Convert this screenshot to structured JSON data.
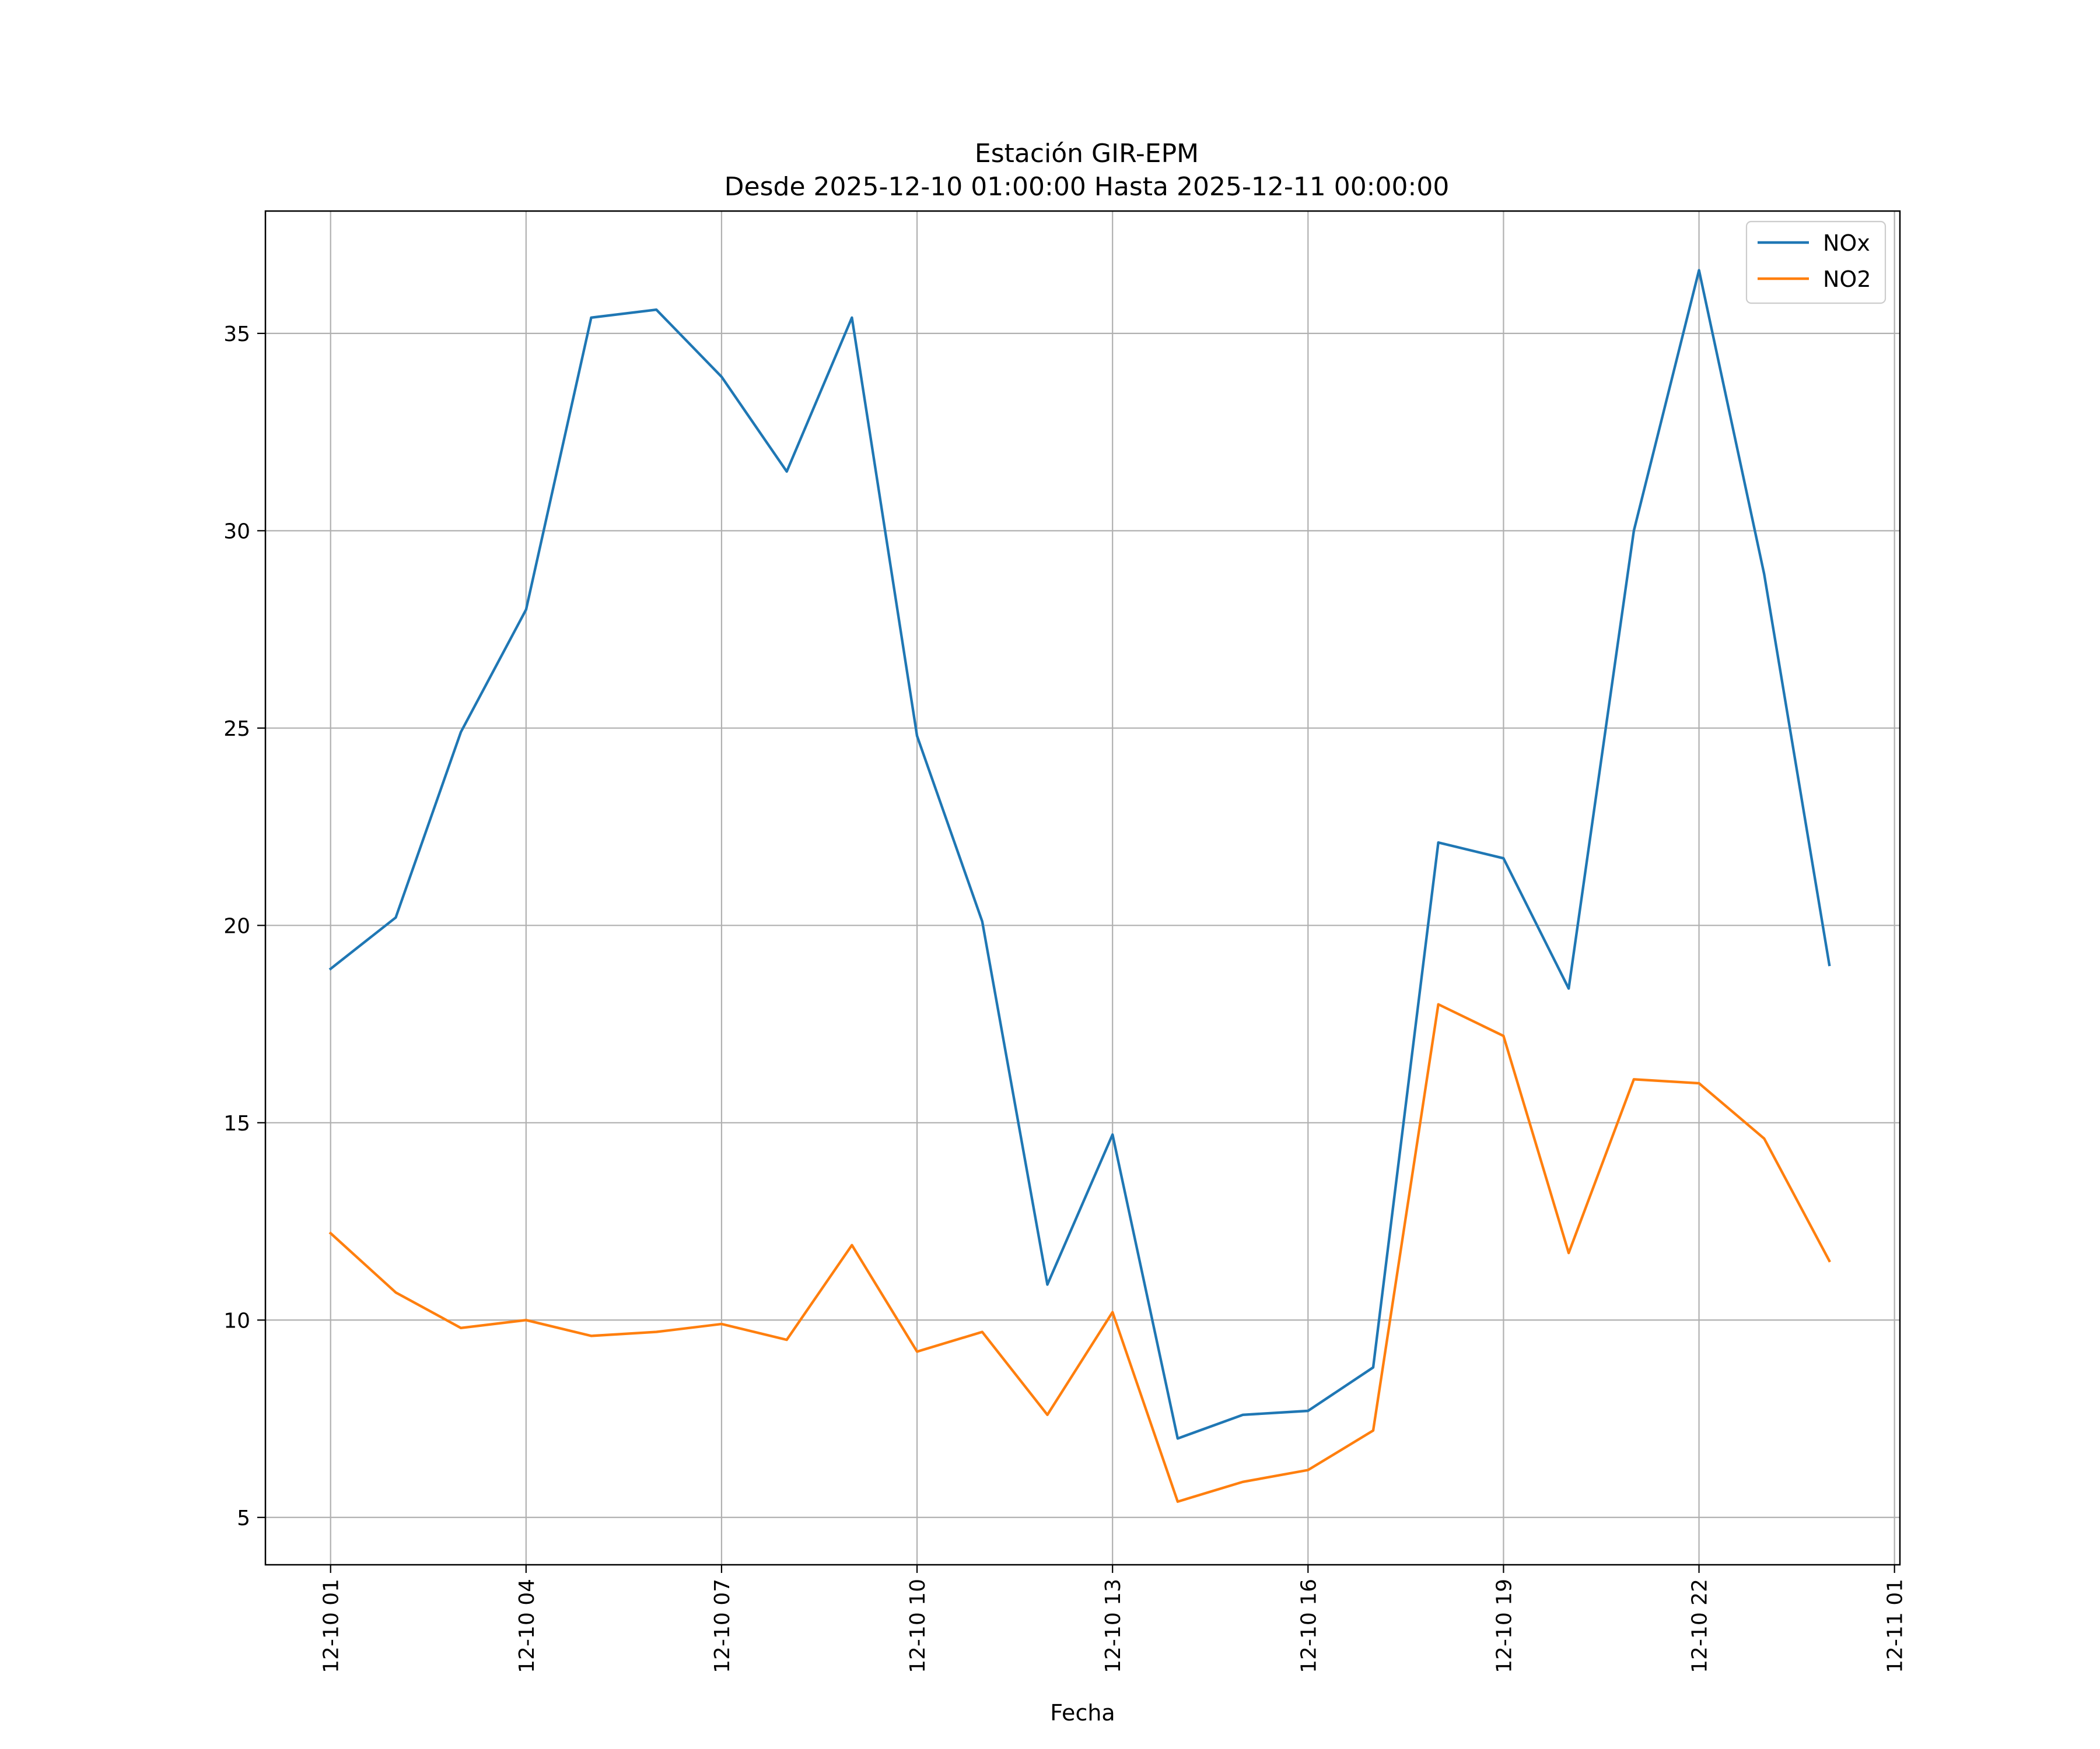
{
  "chart_data": {
    "type": "line",
    "title": "Estación GIR-EPM",
    "subtitle": "Desde 2025-12-10 01:00:00 Hasta 2025-12-11 00:00:00",
    "xlabel": "Fecha",
    "ylabel": "",
    "x": [
      "2025-12-10 01:00",
      "2025-12-10 02:00",
      "2025-12-10 03:00",
      "2025-12-10 04:00",
      "2025-12-10 05:00",
      "2025-12-10 06:00",
      "2025-12-10 07:00",
      "2025-12-10 08:00",
      "2025-12-10 09:00",
      "2025-12-10 10:00",
      "2025-12-10 11:00",
      "2025-12-10 12:00",
      "2025-12-10 13:00",
      "2025-12-10 14:00",
      "2025-12-10 15:00",
      "2025-12-10 16:00",
      "2025-12-10 17:00",
      "2025-12-10 18:00",
      "2025-12-10 19:00",
      "2025-12-10 20:00",
      "2025-12-10 21:00",
      "2025-12-10 22:00",
      "2025-12-10 23:00",
      "2025-12-11 00:00"
    ],
    "xlim": [
      "2025-12-10 00:00",
      "2025-12-11 01:05"
    ],
    "ylim": [
      3.8,
      38.1
    ],
    "xticks": [
      {
        "value": "2025-12-10 01:00",
        "label": "12-10 01"
      },
      {
        "value": "2025-12-10 04:00",
        "label": "12-10 04"
      },
      {
        "value": "2025-12-10 07:00",
        "label": "12-10 07"
      },
      {
        "value": "2025-12-10 10:00",
        "label": "12-10 10"
      },
      {
        "value": "2025-12-10 13:00",
        "label": "12-10 13"
      },
      {
        "value": "2025-12-10 16:00",
        "label": "12-10 16"
      },
      {
        "value": "2025-12-10 19:00",
        "label": "12-10 19"
      },
      {
        "value": "2025-12-10 22:00",
        "label": "12-10 22"
      },
      {
        "value": "2025-12-11 01:00",
        "label": "12-11 01"
      }
    ],
    "yticks": [
      5,
      10,
      15,
      20,
      25,
      30,
      35
    ],
    "grid": true,
    "legend_position": "top-right",
    "series": [
      {
        "name": "NOx",
        "color": "#1f77b4",
        "values": [
          18.9,
          20.2,
          24.9,
          28.0,
          35.4,
          35.6,
          33.9,
          31.5,
          35.4,
          24.8,
          20.1,
          10.9,
          14.7,
          7.0,
          7.6,
          7.7,
          8.8,
          22.1,
          21.7,
          18.4,
          30.0,
          36.6,
          28.9,
          19.0
        ]
      },
      {
        "name": "NO2",
        "color": "#ff7f0e",
        "values": [
          12.2,
          10.7,
          9.8,
          10.0,
          9.6,
          9.7,
          9.9,
          9.5,
          11.9,
          9.2,
          9.7,
          7.6,
          10.2,
          5.4,
          5.9,
          6.2,
          7.2,
          18.0,
          17.2,
          11.7,
          16.1,
          16.0,
          14.6,
          11.5
        ]
      }
    ]
  }
}
